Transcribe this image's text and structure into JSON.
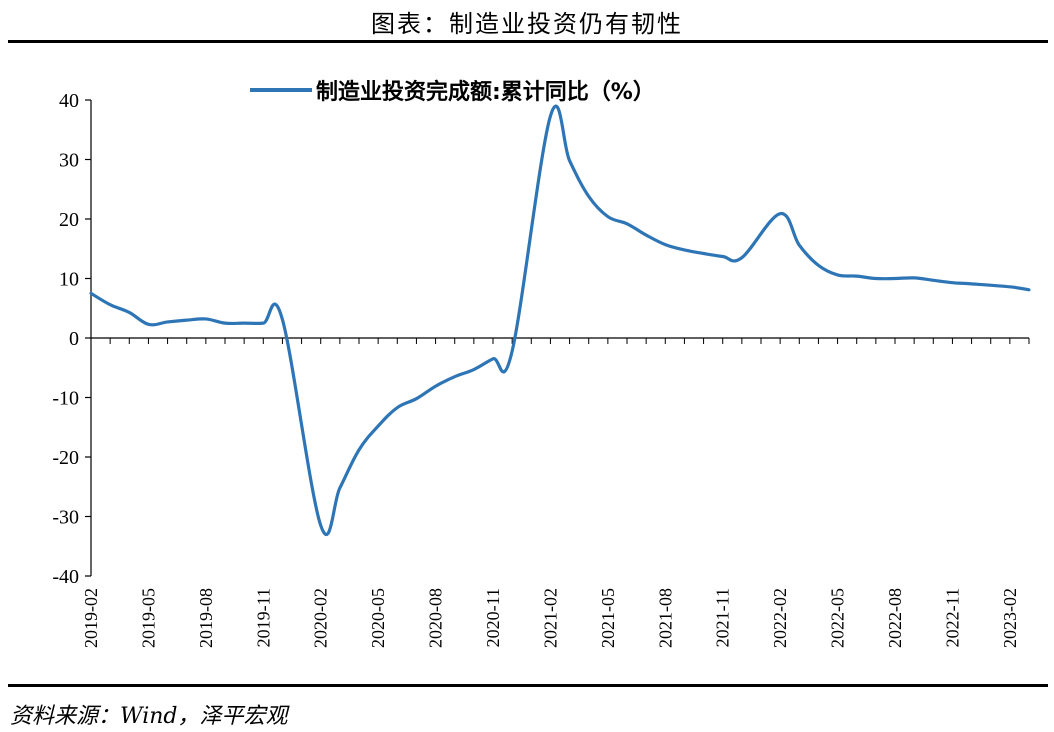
{
  "header": {
    "title": "图表：制造业投资仍有韧性"
  },
  "footer": {
    "source": "资料来源：Wind，泽平宏观"
  },
  "chart_data": {
    "type": "line",
    "title": "",
    "xlabel": "",
    "ylabel": "",
    "ylim": [
      -40,
      40
    ],
    "yticks": [
      40,
      30,
      20,
      10,
      0,
      -10,
      -20,
      -30,
      -40
    ],
    "xticks": [
      "2019-02",
      "2019-05",
      "2019-08",
      "2019-11",
      "2020-02",
      "2020-05",
      "2020-08",
      "2020-11",
      "2021-02",
      "2021-05",
      "2021-08",
      "2021-11",
      "2022-02",
      "2022-05",
      "2022-08",
      "2022-11",
      "2023-02"
    ],
    "legend_position": "top",
    "grid": false,
    "color": "#2E75B6",
    "x": [
      "2019-02",
      "2019-03",
      "2019-04",
      "2019-05",
      "2019-06",
      "2019-07",
      "2019-08",
      "2019-09",
      "2019-10",
      "2019-11",
      "2019-12",
      "2020-02",
      "2020-03",
      "2020-04",
      "2020-05",
      "2020-06",
      "2020-07",
      "2020-08",
      "2020-09",
      "2020-10",
      "2020-11",
      "2020-12",
      "2021-02",
      "2021-03",
      "2021-04",
      "2021-05",
      "2021-06",
      "2021-07",
      "2021-08",
      "2021-09",
      "2021-10",
      "2021-11",
      "2021-12",
      "2022-02",
      "2022-03",
      "2022-04",
      "2022-05",
      "2022-06",
      "2022-07",
      "2022-08",
      "2022-09",
      "2022-10",
      "2022-11",
      "2022-12",
      "2023-02",
      "2023-03"
    ],
    "series": [
      {
        "name": "制造业投资完成额:累计同比（%）",
        "values": [
          7.5,
          5.6,
          4.3,
          2.3,
          2.7,
          3.0,
          3.2,
          2.5,
          2.5,
          2.5,
          3.1,
          -31.5,
          -25.2,
          -18.8,
          -14.8,
          -11.7,
          -10.2,
          -8.1,
          -6.5,
          -5.3,
          -3.5,
          -2.2,
          37.3,
          29.8,
          23.8,
          20.4,
          19.2,
          17.3,
          15.7,
          14.8,
          14.2,
          13.7,
          13.5,
          20.9,
          15.6,
          12.2,
          10.6,
          10.4,
          10.0,
          10.0,
          10.1,
          9.7,
          9.3,
          9.1,
          8.6,
          8.1
        ]
      }
    ]
  }
}
